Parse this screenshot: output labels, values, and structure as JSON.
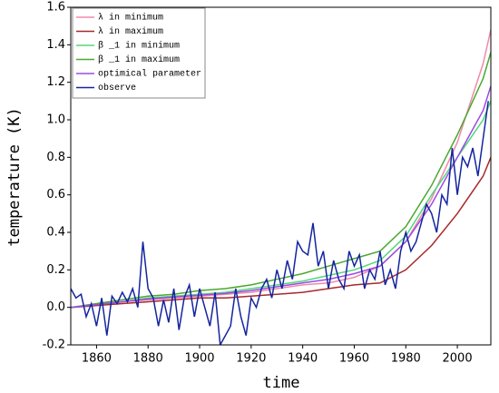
{
  "chart_data": {
    "type": "line",
    "xlabel": "time",
    "ylabel": "temperature (K)",
    "xlim": [
      1850,
      2013
    ],
    "xticks": [
      1860,
      1880,
      1900,
      1920,
      1940,
      1960,
      1980,
      2000
    ],
    "ylim": [
      -0.2,
      1.6
    ],
    "yticks": [
      -0.2,
      {
        "value": 0,
        "label": "0.0"
      },
      0.2,
      0.4,
      0.6,
      0.8,
      {
        "value": 1,
        "label": "1.0"
      },
      1.2,
      1.4,
      1.6
    ],
    "legend": "upper left",
    "series": [
      {
        "name": "λ in minimum",
        "color": "#f08aa8",
        "x": [
          1850,
          1860,
          1870,
          1880,
          1890,
          1900,
          1910,
          1920,
          1930,
          1940,
          1950,
          1960,
          1970,
          1980,
          1990,
          2000,
          2010,
          2013
        ],
        "values": [
          0,
          0.01,
          0.03,
          0.04,
          0.05,
          0.06,
          0.07,
          0.08,
          0.1,
          0.12,
          0.13,
          0.16,
          0.22,
          0.35,
          0.58,
          0.88,
          1.3,
          1.48
        ]
      },
      {
        "name": "λ in maximum",
        "color": "#a8282a",
        "x": [
          1850,
          1860,
          1870,
          1880,
          1890,
          1900,
          1910,
          1920,
          1930,
          1940,
          1950,
          1960,
          1970,
          1980,
          1990,
          2000,
          2010,
          2013
        ],
        "values": [
          0,
          0.01,
          0.02,
          0.03,
          0.04,
          0.05,
          0.05,
          0.06,
          0.07,
          0.08,
          0.1,
          0.12,
          0.13,
          0.2,
          0.33,
          0.5,
          0.7,
          0.8
        ]
      },
      {
        "name": "β _1 in minimum",
        "color": "#50d878",
        "x": [
          1850,
          1860,
          1870,
          1880,
          1890,
          1900,
          1910,
          1920,
          1930,
          1940,
          1950,
          1960,
          1970,
          1980,
          1990,
          2000,
          2010,
          2013
        ],
        "values": [
          0,
          0.015,
          0.03,
          0.05,
          0.06,
          0.07,
          0.08,
          0.1,
          0.12,
          0.14,
          0.17,
          0.2,
          0.25,
          0.38,
          0.6,
          0.8,
          1.0,
          1.1
        ]
      },
      {
        "name": "β _1 in maximum",
        "color": "#4aa830",
        "x": [
          1850,
          1860,
          1870,
          1880,
          1890,
          1900,
          1910,
          1920,
          1930,
          1940,
          1950,
          1960,
          1970,
          1980,
          1990,
          2000,
          2010,
          2013
        ],
        "values": [
          0,
          0.02,
          0.04,
          0.06,
          0.07,
          0.09,
          0.1,
          0.12,
          0.15,
          0.18,
          0.22,
          0.26,
          0.3,
          0.43,
          0.65,
          0.92,
          1.22,
          1.36
        ]
      },
      {
        "name": "optimical parameter",
        "color": "#9a4ae8",
        "x": [
          1850,
          1860,
          1870,
          1880,
          1890,
          1900,
          1910,
          1920,
          1930,
          1940,
          1950,
          1960,
          1970,
          1980,
          1990,
          2000,
          2010,
          2013
        ],
        "values": [
          0,
          0.015,
          0.03,
          0.045,
          0.055,
          0.065,
          0.075,
          0.09,
          0.11,
          0.13,
          0.15,
          0.18,
          0.22,
          0.35,
          0.55,
          0.8,
          1.05,
          1.18
        ]
      },
      {
        "name": "observe",
        "color": "#1424a0",
        "x": [
          1850,
          1852,
          1854,
          1856,
          1858,
          1860,
          1862,
          1864,
          1866,
          1868,
          1870,
          1872,
          1874,
          1876,
          1878,
          1880,
          1882,
          1884,
          1886,
          1888,
          1890,
          1892,
          1894,
          1896,
          1898,
          1900,
          1902,
          1904,
          1906,
          1908,
          1910,
          1912,
          1914,
          1916,
          1918,
          1920,
          1922,
          1924,
          1926,
          1928,
          1930,
          1932,
          1934,
          1936,
          1938,
          1940,
          1942,
          1944,
          1946,
          1948,
          1950,
          1952,
          1954,
          1956,
          1958,
          1960,
          1962,
          1964,
          1966,
          1968,
          1970,
          1972,
          1974,
          1976,
          1978,
          1980,
          1982,
          1984,
          1986,
          1988,
          1990,
          1992,
          1994,
          1996,
          1998,
          2000,
          2002,
          2004,
          2006,
          2008,
          2010,
          2012
        ],
        "values": [
          0.1,
          0.05,
          0.07,
          -0.05,
          0.02,
          -0.1,
          0.05,
          -0.15,
          0.06,
          0.02,
          0.08,
          0.03,
          0.1,
          0,
          0.35,
          0.1,
          0.05,
          -0.1,
          0.04,
          -0.08,
          0.1,
          -0.12,
          0.05,
          0.12,
          -0.05,
          0.1,
          0,
          -0.1,
          0.08,
          -0.2,
          -0.15,
          -0.1,
          0.1,
          -0.05,
          -0.15,
          0.05,
          0,
          0.1,
          0.15,
          0.05,
          0.2,
          0.1,
          0.25,
          0.15,
          0.35,
          0.3,
          0.28,
          0.45,
          0.22,
          0.3,
          0.1,
          0.25,
          0.15,
          0.1,
          0.3,
          0.22,
          0.28,
          0.1,
          0.2,
          0.15,
          0.3,
          0.12,
          0.2,
          0.1,
          0.3,
          0.4,
          0.3,
          0.35,
          0.45,
          0.55,
          0.5,
          0.4,
          0.6,
          0.55,
          0.85,
          0.6,
          0.8,
          0.75,
          0.85,
          0.7,
          0.9,
          1.1
        ]
      }
    ]
  }
}
